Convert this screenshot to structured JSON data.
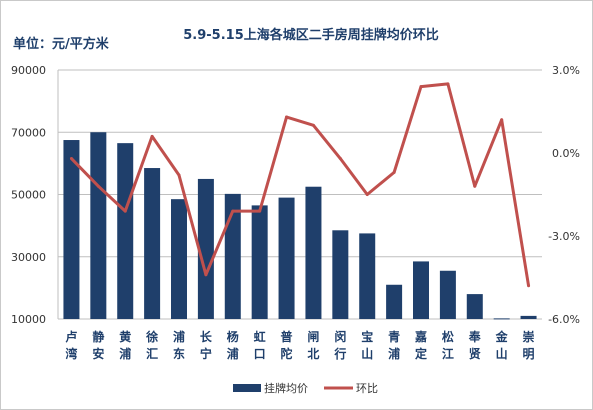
{
  "chart_data": {
    "type": "bar",
    "title": "5.9-5.15上海各城区二手房周挂牌均价环比",
    "unit_label": "单位：元/平方米",
    "categories": [
      "卢湾",
      "静安",
      "黄浦",
      "徐汇",
      "浦东",
      "长宁",
      "杨浦",
      "虹口",
      "普陀",
      "闸北",
      "闵行",
      "宝山",
      "青浦",
      "嘉定",
      "松江",
      "奉贤",
      "金山",
      "崇明"
    ],
    "category_labels": [
      [
        "卢",
        "湾"
      ],
      [
        "静",
        "安"
      ],
      [
        "黄",
        "浦"
      ],
      [
        "徐",
        "汇"
      ],
      [
        "浦",
        "东"
      ],
      [
        "长",
        "宁"
      ],
      [
        "杨",
        "浦"
      ],
      [
        "虹",
        "口"
      ],
      [
        "普",
        "陀"
      ],
      [
        "闸",
        "北"
      ],
      [
        "闵",
        "行"
      ],
      [
        "宝",
        "山"
      ],
      [
        "青",
        "浦"
      ],
      [
        "嘉",
        "定"
      ],
      [
        "松",
        "江"
      ],
      [
        "奉",
        "贤"
      ],
      [
        "金",
        "山"
      ],
      [
        "崇",
        "明"
      ]
    ],
    "series": [
      {
        "name": "挂牌均价",
        "type": "bar",
        "axis": "left",
        "color": "#1f3f6b",
        "values": [
          67500,
          70000,
          66500,
          58500,
          48500,
          55000,
          50200,
          46500,
          49000,
          52500,
          38500,
          37500,
          21000,
          28500,
          25500,
          18000,
          10200,
          11000
        ]
      },
      {
        "name": "环比",
        "type": "line",
        "axis": "right",
        "color": "#c0504d",
        "values": [
          -0.2,
          -1.2,
          -2.1,
          0.6,
          -0.8,
          -4.4,
          -2.1,
          -2.1,
          1.3,
          1.0,
          -0.2,
          -1.5,
          -0.7,
          2.4,
          2.5,
          -1.2,
          1.2,
          -4.8
        ]
      }
    ],
    "y_left": {
      "range": [
        10000,
        90000
      ],
      "ticks": [
        "90000",
        "70000",
        "50000",
        "30000",
        "10000"
      ]
    },
    "y_right": {
      "range": [
        -6.0,
        3.0
      ],
      "ticks": [
        "3.0%",
        "0.0%",
        "-3.0%",
        "-6.0%"
      ]
    },
    "grid": true,
    "legend_position": "bottom"
  }
}
